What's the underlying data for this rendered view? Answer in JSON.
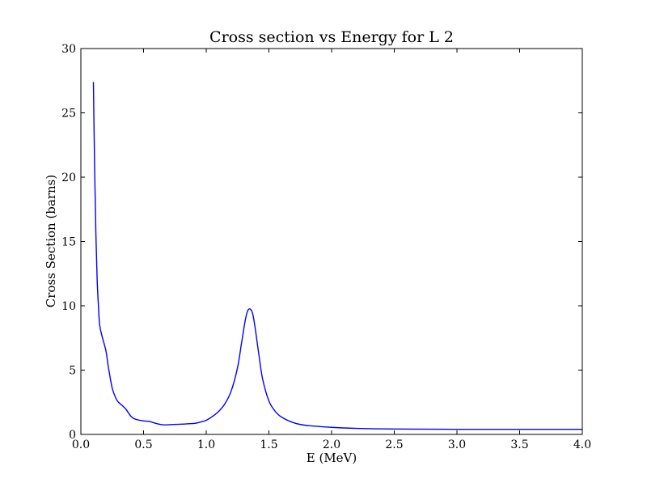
{
  "chart_data": {
    "type": "line",
    "title": "Cross section vs Energy for L 2",
    "xlabel": "E (MeV)",
    "ylabel": "Cross Section (barns)",
    "xlim": [
      0.0,
      4.0
    ],
    "ylim": [
      0,
      30
    ],
    "x_ticks": [
      "0.0",
      "0.5",
      "1.0",
      "1.5",
      "2.0",
      "2.5",
      "3.0",
      "3.5",
      "4.0"
    ],
    "y_ticks": [
      "0",
      "5",
      "10",
      "15",
      "20",
      "25",
      "30"
    ],
    "grid": false,
    "legend": "none",
    "series": [
      {
        "color": "#0000ff",
        "x": [
          0.1,
          0.11,
          0.12,
          0.13,
          0.14,
          0.15,
          0.17,
          0.2,
          0.22,
          0.25,
          0.28,
          0.3,
          0.33,
          0.36,
          0.4,
          0.43,
          0.46,
          0.5,
          0.55,
          0.6,
          0.65,
          0.7,
          0.8,
          0.9,
          0.95,
          1.0,
          1.05,
          1.1,
          1.15,
          1.2,
          1.25,
          1.28,
          1.31,
          1.33,
          1.35,
          1.37,
          1.39,
          1.42,
          1.45,
          1.5,
          1.55,
          1.6,
          1.7,
          1.8,
          2.0,
          2.2,
          2.5,
          3.0,
          3.5,
          4.0
        ],
        "y": [
          27.4,
          20.5,
          15.5,
          12.0,
          10.0,
          8.5,
          7.6,
          6.5,
          5.2,
          3.6,
          2.8,
          2.5,
          2.25,
          1.95,
          1.4,
          1.2,
          1.12,
          1.05,
          1.0,
          0.85,
          0.75,
          0.75,
          0.8,
          0.85,
          0.95,
          1.1,
          1.4,
          1.8,
          2.4,
          3.4,
          5.2,
          7.0,
          8.8,
          9.6,
          9.75,
          9.4,
          8.3,
          6.2,
          4.3,
          2.6,
          1.8,
          1.35,
          0.9,
          0.7,
          0.55,
          0.47,
          0.42,
          0.4,
          0.4,
          0.4
        ]
      }
    ]
  }
}
